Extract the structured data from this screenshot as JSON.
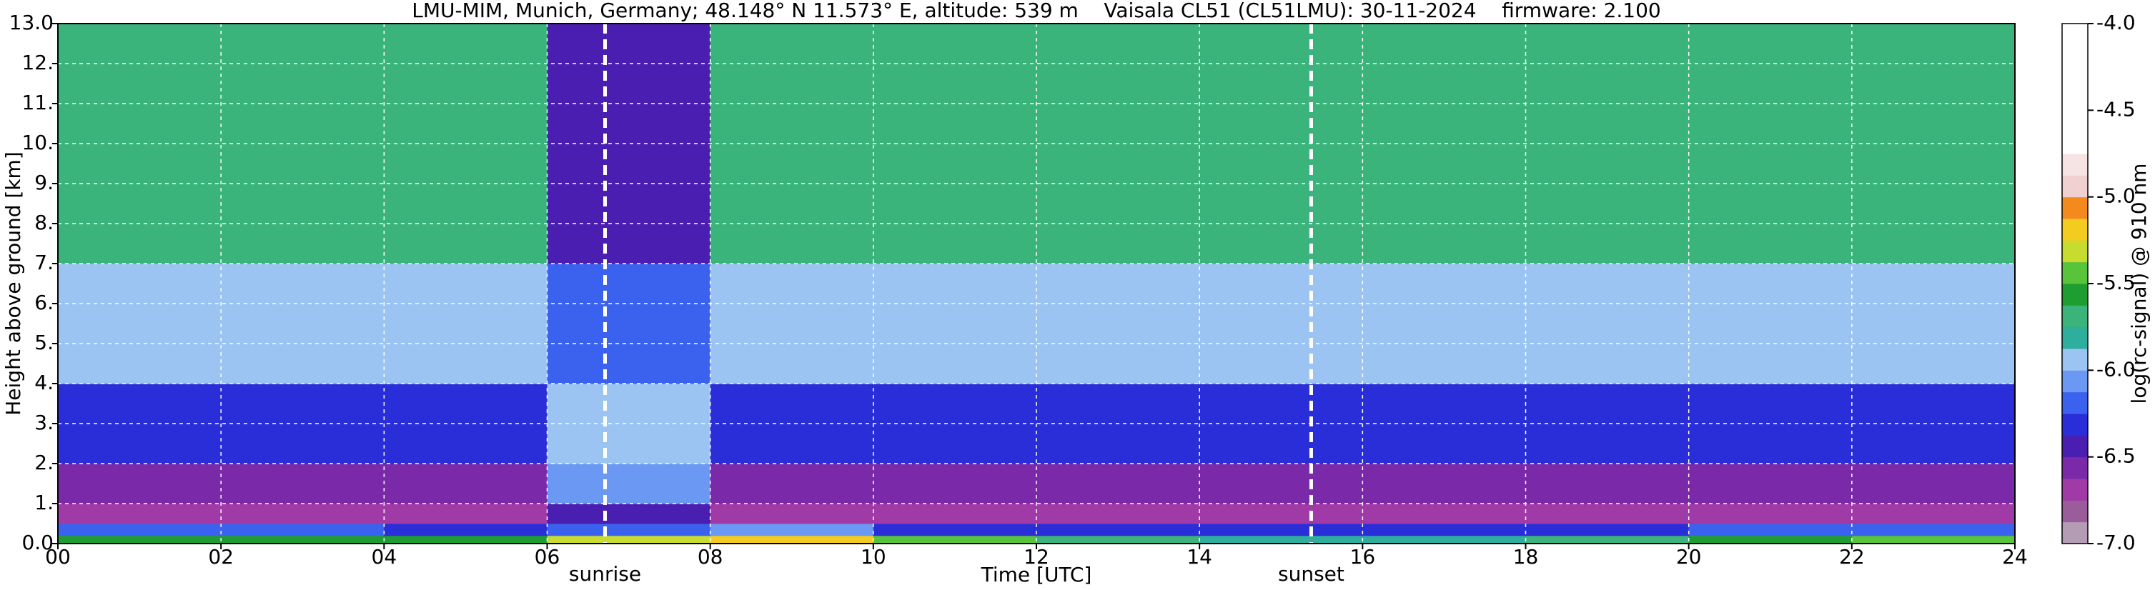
{
  "chart_data": {
    "type": "heatmap",
    "title": "LMU-MIM, Munich, Germany; 48.148° N 11.573° E, altitude: 539 m    Vaisala CL51 (CL51LMU): 30-11-2024    firmware: 2.100",
    "x_label": "Time [UTC]",
    "y_label": "Height above ground [km]",
    "xlim": [
      0,
      24
    ],
    "xticks": [
      {
        "value": 0,
        "label": "00"
      },
      {
        "value": 2,
        "label": "02"
      },
      {
        "value": 4,
        "label": "04"
      },
      {
        "value": 6,
        "label": "06"
      },
      {
        "value": 8,
        "label": "08"
      },
      10,
      12,
      14,
      16,
      18,
      20,
      22,
      24
    ],
    "ylim": [
      0,
      13
    ],
    "yticks": [
      {
        "value": 0,
        "label": "0.0"
      },
      {
        "value": 1,
        "label": "1."
      },
      {
        "value": 2,
        "label": "2."
      },
      {
        "value": 3,
        "label": "3."
      },
      {
        "value": 4,
        "label": "4."
      },
      {
        "value": 5,
        "label": "5."
      },
      {
        "value": 6,
        "label": "6."
      },
      {
        "value": 7,
        "label": "7."
      },
      {
        "value": 8,
        "label": "8."
      },
      {
        "value": 9,
        "label": "9."
      },
      {
        "value": 10,
        "label": "10."
      },
      {
        "value": 11,
        "label": "11."
      },
      {
        "value": 12,
        "label": "12."
      },
      {
        "value": 13,
        "label": "13.0"
      }
    ],
    "grid": true,
    "time_bins": [
      0,
      2,
      4,
      6,
      8,
      10,
      12,
      14,
      16,
      18,
      20,
      22,
      24
    ],
    "height_bins": [
      0,
      0.2,
      0.5,
      1,
      2,
      4,
      7,
      13
    ],
    "z": [
      [
        -5.6,
        -5.6,
        -5.6,
        -5.3,
        -5.2,
        -5.5,
        -5.7,
        -5.8,
        -5.8,
        -5.7,
        -5.6,
        -5.4
      ],
      [
        -6.2,
        -6.2,
        -6.3,
        -6.2,
        -6.1,
        -6.3,
        -6.3,
        -6.3,
        -6.3,
        -6.3,
        -6.2,
        -6.2
      ],
      [
        -6.7,
        -6.7,
        -6.7,
        -6.5,
        -6.7,
        -6.7,
        -6.7,
        -6.7,
        -6.7,
        -6.7,
        -6.7,
        -6.7
      ],
      [
        -6.6,
        -6.6,
        -6.6,
        -6.1,
        -6.6,
        -6.6,
        -6.6,
        -6.6,
        -6.6,
        -6.6,
        -6.6,
        -6.6
      ],
      [
        -6.3,
        -6.3,
        -6.3,
        -6.0,
        -6.3,
        -6.3,
        -6.3,
        -6.3,
        -6.3,
        -6.3,
        -6.3,
        -6.3
      ],
      [
        -5.95,
        -5.95,
        -5.95,
        -6.2,
        -5.95,
        -5.95,
        -5.95,
        -5.95,
        -5.95,
        -5.95,
        -5.95,
        -5.95
      ],
      [
        -5.7,
        -5.7,
        -5.7,
        -6.4,
        -5.7,
        -5.7,
        -5.7,
        -5.7,
        -5.7,
        -5.7,
        -5.7,
        -5.7
      ]
    ],
    "annotations": [
      {
        "text": "sunrise",
        "x": 6.71
      },
      {
        "text": "sunset",
        "x": 15.37
      }
    ],
    "colorbar": {
      "label": "log(rc-signal) @ 910 nm",
      "lim": [
        -7,
        -4
      ],
      "ticks": [
        {
          "value": -7,
          "label": "-7.0"
        },
        -6.5,
        {
          "value": -6,
          "label": "-6.0"
        },
        -5.5,
        {
          "value": -5,
          "label": "-5.0"
        },
        -4.5,
        {
          "value": -4,
          "label": "-4.0"
        }
      ],
      "colors": [
        "#b49cb4",
        "#9a5c9a",
        "#a03aa6",
        "#7a2aa8",
        "#4a1eb0",
        "#2a2ed8",
        "#3a62ee",
        "#6a98f2",
        "#9cc4f2",
        "#2eae9c",
        "#3ab47a",
        "#1e9e30",
        "#58c43a",
        "#c8dc30",
        "#f4cc20",
        "#f48a1e",
        "#f0d0d0",
        "#f6e4e4",
        "#ffffff",
        "#ffffff",
        "#ffffff",
        "#ffffff",
        "#ffffff",
        "#ffffff"
      ]
    }
  }
}
